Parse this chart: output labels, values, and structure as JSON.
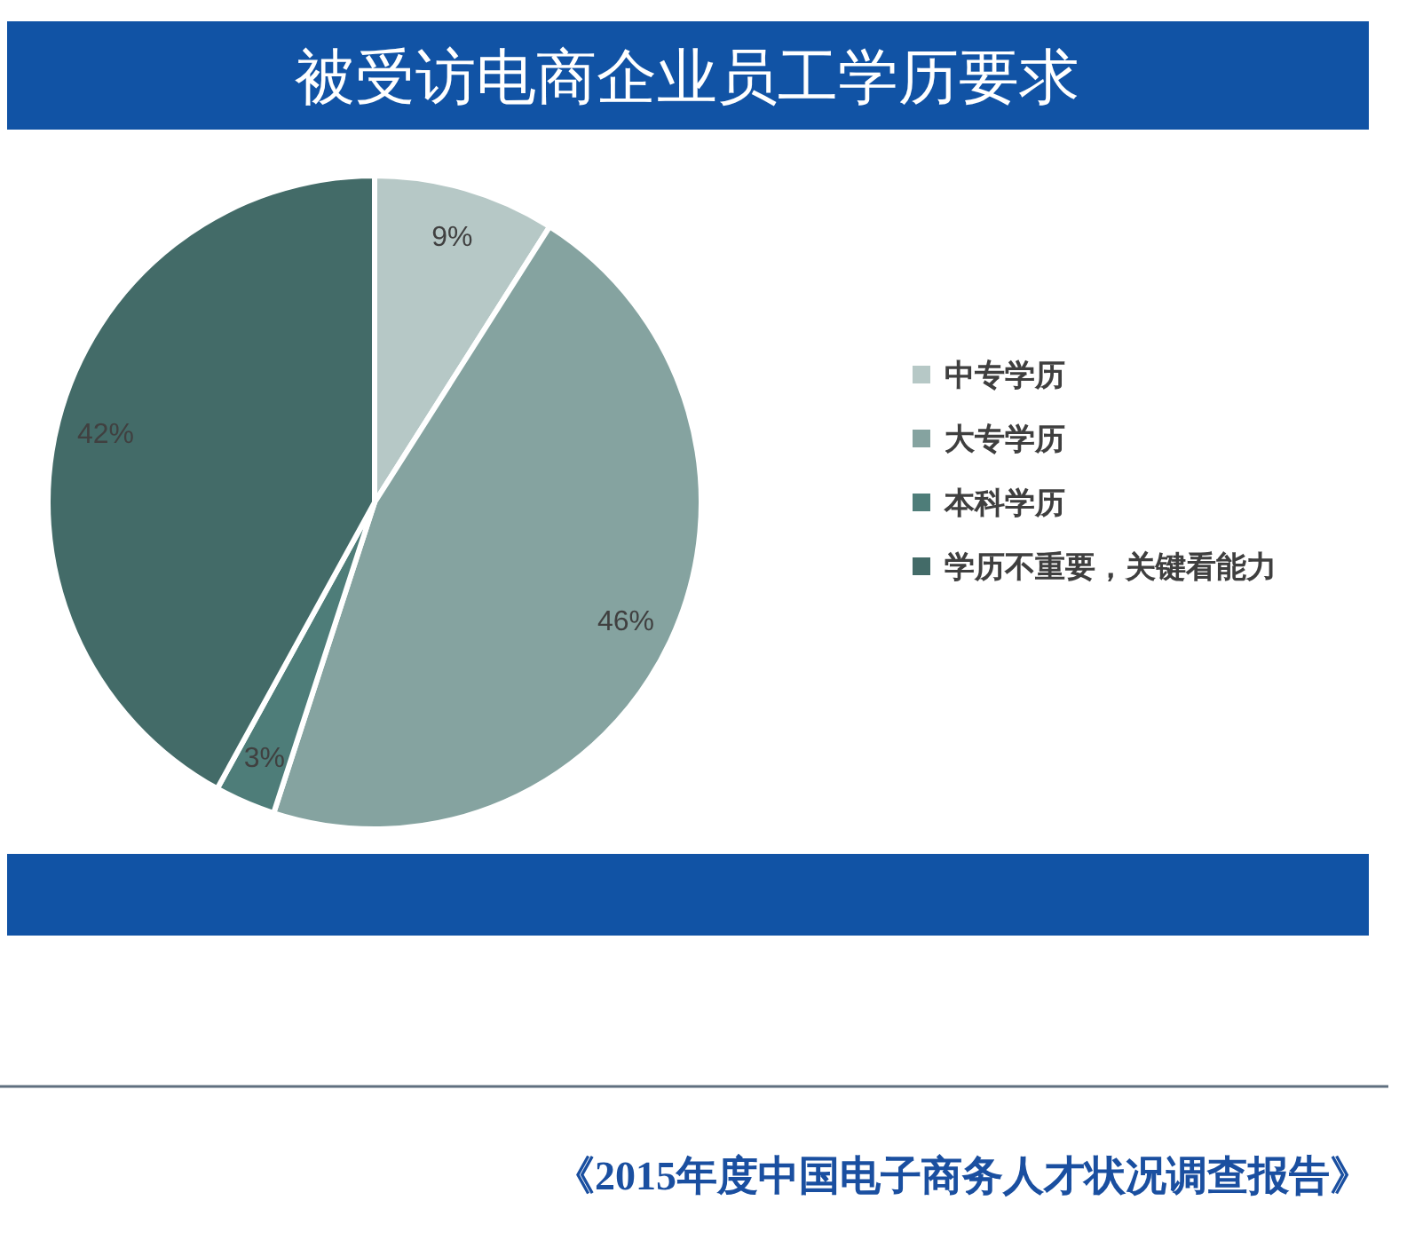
{
  "chart_data": {
    "type": "pie",
    "title": "被受访电商企业员工学历要求",
    "categories": [
      "中专学历",
      "大专学历",
      "本科学历",
      "学历不重要，关键看能力"
    ],
    "values": [
      9,
      46,
      3,
      42
    ],
    "colors": [
      "#b6c8c6",
      "#85a3a0",
      "#4e7d79",
      "#436b68"
    ],
    "value_labels": [
      "9%",
      "46%",
      "3%",
      "42%"
    ],
    "legend": "right",
    "annotations": [
      "《2015年度中国电子商务人才状况调查报告》"
    ]
  }
}
